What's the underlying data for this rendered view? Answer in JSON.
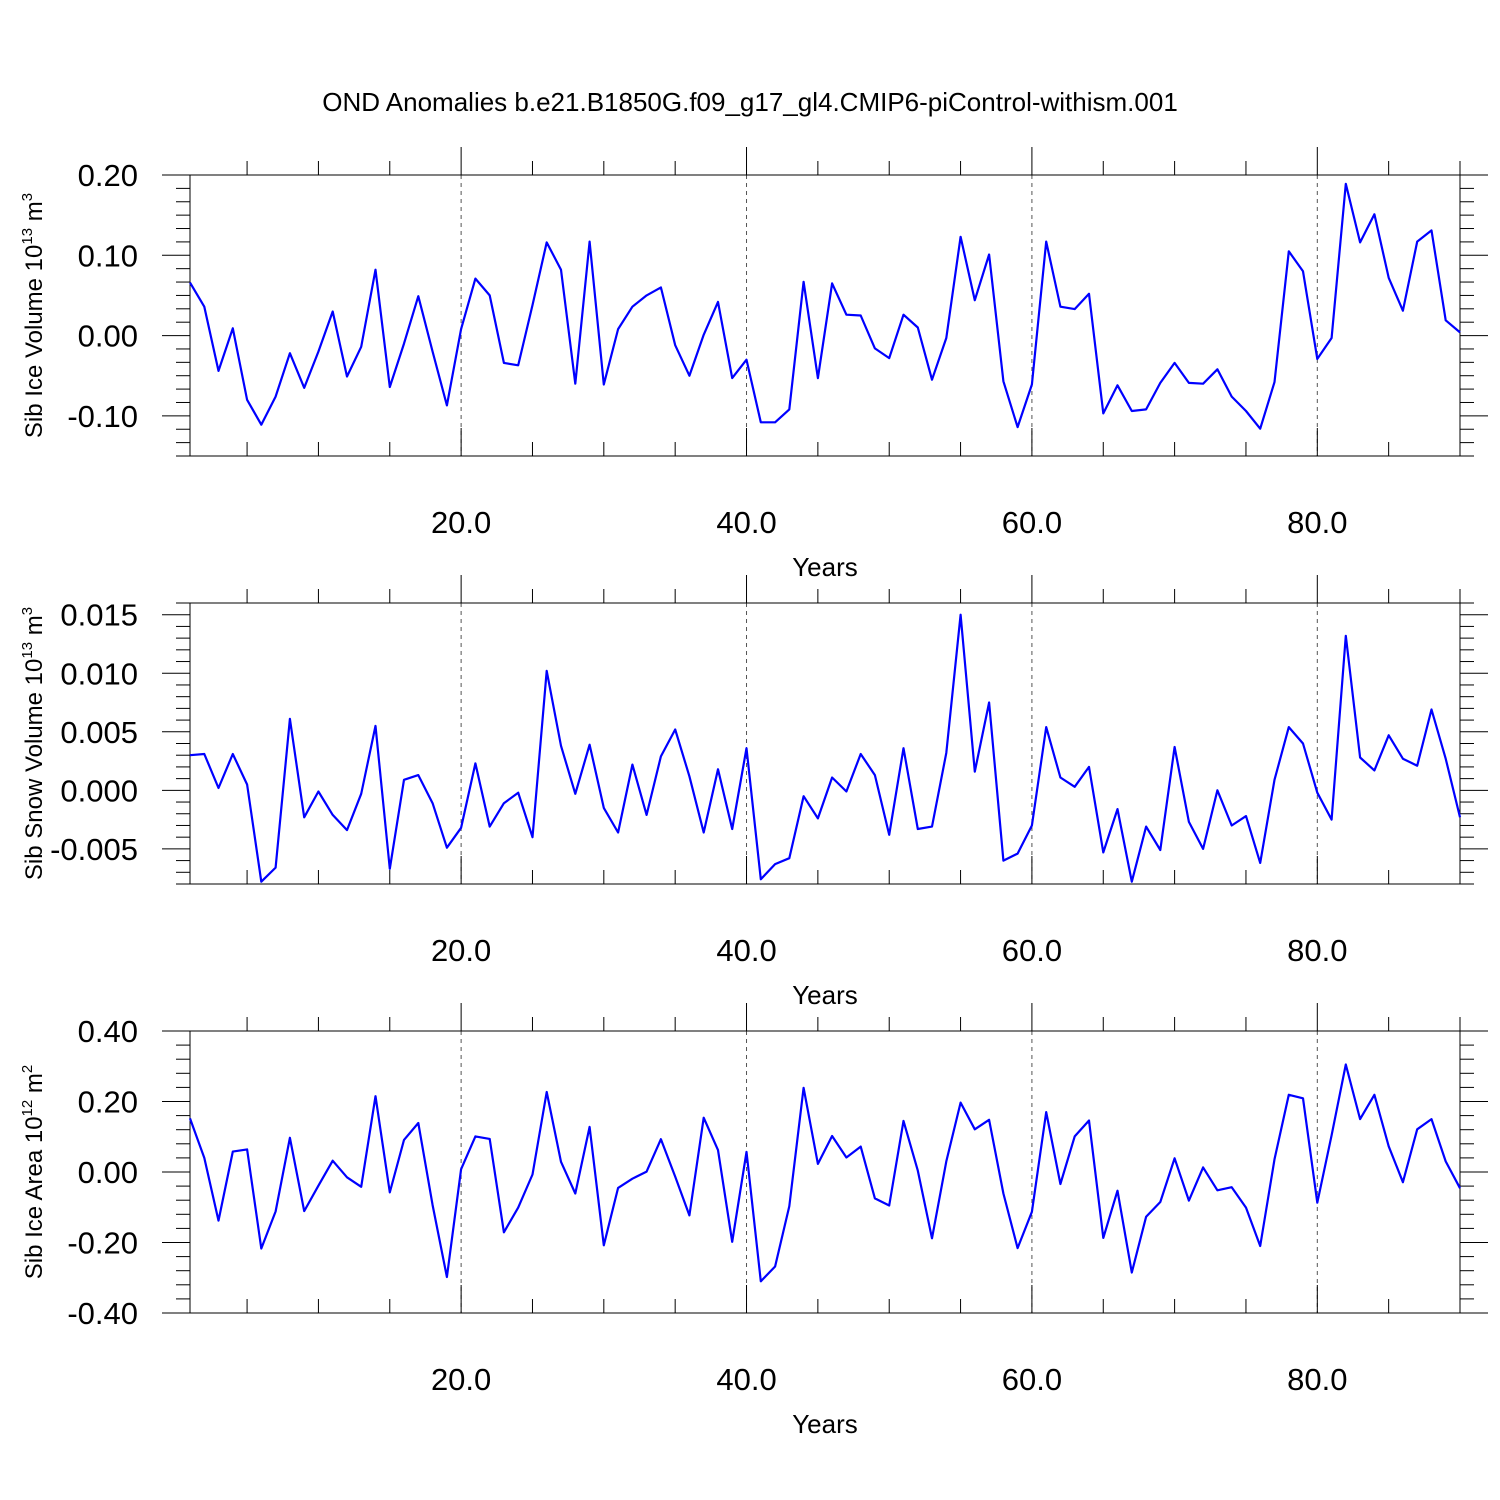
{
  "title": "OND Anomalies b.e21.B1850G.f09_g17_gl4.CMIP6-piControl-withism.001",
  "chart_data": [
    {
      "type": "line",
      "ylabel": "Sib Ice Volume 10",
      "ylabel_exp": "13",
      "ylabel_unit": " m",
      "ylabel_unit_exp": "3",
      "xlabel": "Years",
      "xlim": [
        1,
        90
      ],
      "ylim": [
        -0.15,
        0.2
      ],
      "xticks": [
        20,
        40,
        60,
        80
      ],
      "xtick_labels": [
        "20.0",
        "40.0",
        "60.0",
        "80.0"
      ],
      "yticks": [
        -0.1,
        0.0,
        0.1,
        0.2
      ],
      "ytick_labels": [
        "-0.10",
        "0.00",
        "0.10",
        "0.20"
      ],
      "grid": "dashed vertical at major x ticks",
      "x_start": 1,
      "x_step": 1,
      "values": [
        0.066,
        0.036,
        -0.044,
        0.009,
        -0.08,
        -0.111,
        -0.076,
        -0.022,
        -0.065,
        -0.02,
        0.03,
        -0.051,
        -0.014,
        0.082,
        -0.064,
        -0.01,
        0.049,
        -0.02,
        -0.087,
        0.008,
        0.071,
        0.05,
        -0.034,
        -0.037,
        0.038,
        0.116,
        0.082,
        -0.06,
        0.117,
        -0.061,
        0.008,
        0.036,
        0.05,
        0.06,
        -0.012,
        -0.05,
        0.001,
        0.042,
        -0.053,
        -0.03,
        -0.108,
        -0.108,
        -0.092,
        0.067,
        -0.053,
        0.065,
        0.026,
        0.025,
        -0.016,
        -0.028,
        0.026,
        0.01,
        -0.055,
        -0.003,
        0.123,
        0.044,
        0.101,
        -0.057,
        -0.114,
        -0.061,
        0.117,
        0.036,
        0.033,
        0.052,
        -0.097,
        -0.062,
        -0.094,
        -0.092,
        -0.059,
        -0.034,
        -0.059,
        -0.06,
        -0.042,
        -0.076,
        -0.094,
        -0.116,
        -0.058,
        0.105,
        0.08,
        -0.029,
        -0.003,
        0.189,
        0.116,
        0.151,
        0.072,
        0.031,
        0.117,
        0.131,
        0.019,
        0.004
      ]
    },
    {
      "type": "line",
      "ylabel": "Sib Snow Volume 10",
      "ylabel_exp": "13",
      "ylabel_unit": " m",
      "ylabel_unit_exp": "3",
      "xlabel": "Years",
      "xlim": [
        1,
        90
      ],
      "ylim": [
        -0.008,
        0.016
      ],
      "xticks": [
        20,
        40,
        60,
        80
      ],
      "xtick_labels": [
        "20.0",
        "40.0",
        "60.0",
        "80.0"
      ],
      "yticks": [
        -0.005,
        0.0,
        0.005,
        0.01,
        0.015
      ],
      "ytick_labels": [
        "-0.005",
        "0.000",
        "0.005",
        "0.010",
        "0.015"
      ],
      "grid": "dashed vertical at major x ticks",
      "x_start": 1,
      "x_step": 1,
      "values": [
        0.003,
        0.0031,
        0.0002,
        0.0031,
        0.0005,
        -0.0078,
        -0.0066,
        0.0061,
        -0.0023,
        -0.0001,
        -0.0021,
        -0.0034,
        -0.0003,
        0.0055,
        -0.0067,
        0.0009,
        0.0013,
        -0.0011,
        -0.0049,
        -0.0032,
        0.0023,
        -0.0031,
        -0.0011,
        -0.0002,
        -0.004,
        0.0102,
        0.0038,
        -0.0003,
        0.0039,
        -0.0015,
        -0.0036,
        0.0022,
        -0.0021,
        0.0029,
        0.0052,
        0.0012,
        -0.0036,
        0.0018,
        -0.0033,
        0.0036,
        -0.0076,
        -0.0063,
        -0.0058,
        -0.0005,
        -0.0024,
        0.0011,
        -0.0001,
        0.0031,
        0.0013,
        -0.0038,
        0.0036,
        -0.0033,
        -0.0031,
        0.0032,
        0.015,
        0.0016,
        0.0075,
        -0.006,
        -0.0054,
        -0.003,
        0.0054,
        0.0011,
        0.0003,
        0.002,
        -0.0053,
        -0.0016,
        -0.0078,
        -0.0031,
        -0.0051,
        0.0037,
        -0.0027,
        -0.005,
        0.0,
        -0.003,
        -0.0022,
        -0.0062,
        0.0009,
        0.0054,
        0.004,
        -0.0002,
        -0.0025,
        0.0132,
        0.0028,
        0.0017,
        0.0047,
        0.0027,
        0.0021,
        0.0069,
        0.0027,
        -0.0023
      ]
    },
    {
      "type": "line",
      "ylabel": "Sib Ice Area 10",
      "ylabel_exp": "12",
      "ylabel_unit": " m",
      "ylabel_unit_exp": "2",
      "xlabel": "Years",
      "xlim": [
        1,
        90
      ],
      "ylim": [
        -0.4,
        0.4
      ],
      "xticks": [
        20,
        40,
        60,
        80
      ],
      "xtick_labels": [
        "20.0",
        "40.0",
        "60.0",
        "80.0"
      ],
      "yticks": [
        -0.4,
        -0.2,
        0.0,
        0.2,
        0.4
      ],
      "ytick_labels": [
        "-0.40",
        "-0.20",
        "0.00",
        "0.20",
        "0.40"
      ],
      "grid": "dashed vertical at major x ticks",
      "x_start": 1,
      "x_step": 1,
      "values": [
        0.152,
        0.04,
        -0.138,
        0.058,
        0.064,
        -0.217,
        -0.112,
        0.097,
        -0.111,
        -0.039,
        0.032,
        -0.015,
        -0.042,
        0.215,
        -0.058,
        0.091,
        0.139,
        -0.094,
        -0.298,
        0.008,
        0.101,
        0.094,
        -0.171,
        -0.101,
        -0.007,
        0.227,
        0.029,
        -0.061,
        0.128,
        -0.208,
        -0.045,
        -0.019,
        0.001,
        0.093,
        -0.013,
        -0.123,
        0.154,
        0.062,
        -0.198,
        0.057,
        -0.31,
        -0.268,
        -0.097,
        0.239,
        0.023,
        0.102,
        0.041,
        0.072,
        -0.075,
        -0.095,
        0.145,
        0.004,
        -0.188,
        0.03,
        0.197,
        0.121,
        0.148,
        -0.061,
        -0.216,
        -0.113,
        0.17,
        -0.034,
        0.101,
        0.146,
        -0.187,
        -0.053,
        -0.285,
        -0.127,
        -0.085,
        0.039,
        -0.081,
        0.013,
        -0.052,
        -0.043,
        -0.101,
        -0.21,
        0.036,
        0.219,
        0.209,
        -0.087,
        0.104,
        0.305,
        0.15,
        0.219,
        0.073,
        -0.029,
        0.121,
        0.15,
        0.03,
        -0.046
      ]
    }
  ]
}
